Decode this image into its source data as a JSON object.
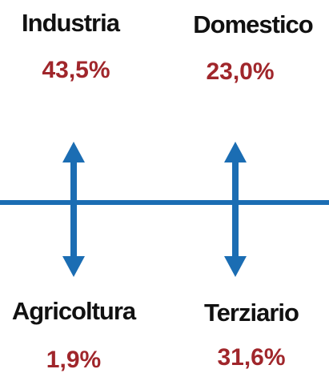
{
  "items": [
    {
      "label": "Industria",
      "value": "43,5%"
    },
    {
      "label": "Domestico",
      "value": "23,0%"
    },
    {
      "label": "Agricoltura",
      "value": "1,9%"
    },
    {
      "label": "Terziario",
      "value": "31,6%"
    }
  ]
}
